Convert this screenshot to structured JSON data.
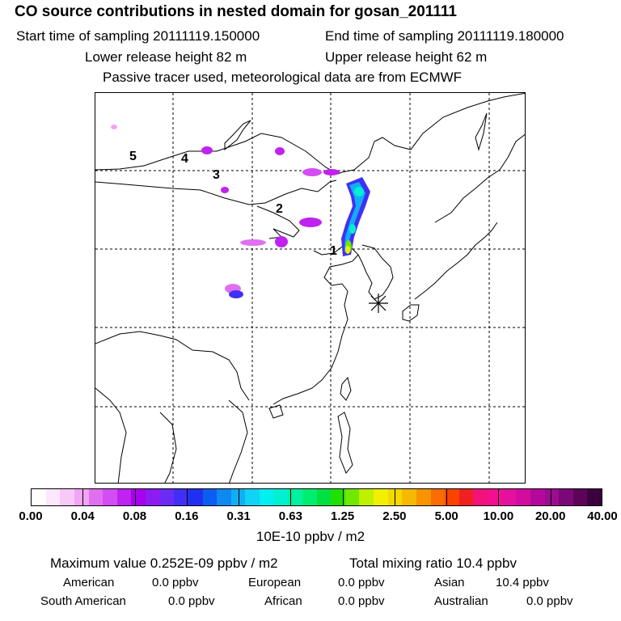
{
  "header": {
    "title": "CO  source contributions in nested domain for gosan_201111",
    "start_time": "Start time of sampling 20111119.150000",
    "end_time": "End time of sampling 20111119.180000",
    "lower_height": "Lower release height   82 m",
    "upper_height": "Upper release height   62 m",
    "tracer_note": "Passive tracer used, meteorological data are from ECMWF"
  },
  "map": {
    "trajectory_labels": [
      "1",
      "2",
      "3",
      "4",
      "5"
    ],
    "receptor_icon": "asterisk-icon"
  },
  "colorbar": {
    "colors": [
      "#ffffff",
      "#fde7fd",
      "#f8c9f8",
      "#f1a6f4",
      "#e070f0",
      "#d24ef2",
      "#c022f0",
      "#a800f0",
      "#8c1cf2",
      "#6a2cf5",
      "#4030f6",
      "#2030f0",
      "#0a5ef0",
      "#0f88f2",
      "#12aef5",
      "#10d4f5",
      "#00f0f0",
      "#00f0d0",
      "#00f2a0",
      "#00ee70",
      "#00e040",
      "#20e000",
      "#70e800",
      "#bff000",
      "#f0f000",
      "#f4d800",
      "#f6b800",
      "#f89400",
      "#f86c00",
      "#f84400",
      "#f02020",
      "#f4127a",
      "#f01090",
      "#e410a0",
      "#d20ca0",
      "#b4089c",
      "#9a0c90",
      "#7c0878",
      "#5c0458",
      "#3c0040"
    ],
    "tick_labels": [
      "0.00",
      "0.04",
      "0.08",
      "0.16",
      "0.31",
      "0.63",
      "1.25",
      "2.50",
      "5.00",
      "10.00",
      "20.00",
      "40.00"
    ],
    "units": "10E-10 ppbv / m2"
  },
  "summary": {
    "max_value": "Maximum value  0.252E-09 ppbv / m2",
    "total_mixing": "Total mixing ratio       10.4 ppbv",
    "regions": [
      {
        "name": "American",
        "value": "0.0 ppbv"
      },
      {
        "name": "European",
        "value": "0.0 ppbv"
      },
      {
        "name": "Asian",
        "value": "10.4 ppbv"
      },
      {
        "name": "South American",
        "value": "0.0 ppbv"
      },
      {
        "name": "African",
        "value": "0.0 ppbv"
      },
      {
        "name": "Australian",
        "value": "0.0 ppbv"
      }
    ]
  }
}
